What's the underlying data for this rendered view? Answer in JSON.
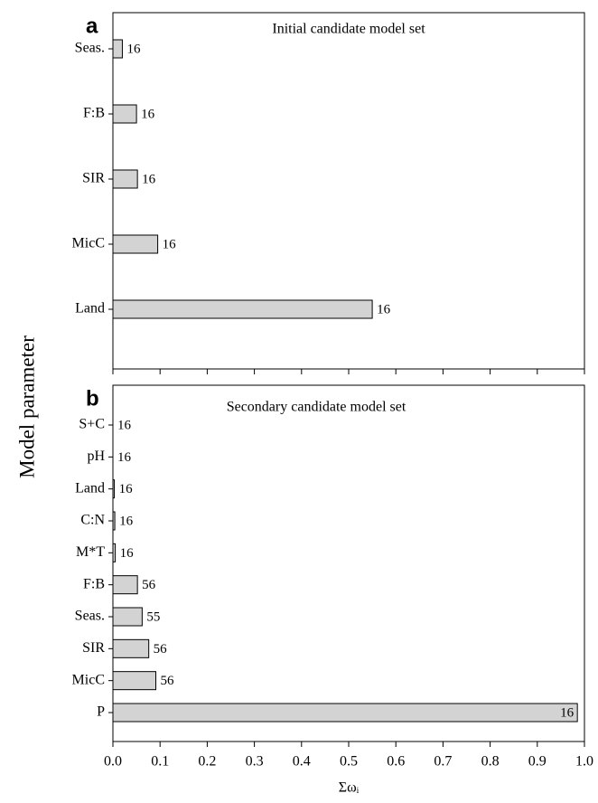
{
  "ylabel": "Model parameter",
  "chart_data": [
    {
      "type": "bar",
      "orientation": "horizontal",
      "panel_label": "a",
      "title": "Initial candidate model set",
      "categories": [
        "Seas.",
        "F:B",
        "SIR",
        "MicC",
        "Land"
      ],
      "values": [
        0.02,
        0.05,
        0.052,
        0.095,
        0.55
      ],
      "bar_labels": [
        16,
        16,
        16,
        16,
        16
      ],
      "color": "#d3d3d3",
      "xlim": [
        0,
        1
      ],
      "xticks": [
        0,
        0.1,
        0.2,
        0.3,
        0.4,
        0.5,
        0.6,
        0.7,
        0.8,
        0.9,
        1
      ],
      "show_tick_labels": false
    },
    {
      "type": "bar",
      "orientation": "horizontal",
      "panel_label": "b",
      "title": "Secondary candidate model set",
      "categories": [
        "S+C",
        "pH",
        "Land",
        "C:N",
        "M*T",
        "F:B",
        "Seas.",
        "SIR",
        "MicC",
        "P"
      ],
      "values": [
        0,
        0,
        0.003,
        0.004,
        0.005,
        0.052,
        0.062,
        0.076,
        0.091,
        0.985
      ],
      "bar_labels": [
        16,
        16,
        16,
        16,
        16,
        56,
        55,
        56,
        56,
        16
      ],
      "color": "#d3d3d3",
      "xlim": [
        0,
        1
      ],
      "xticks": [
        {
          "value": 0,
          "label": "0.0"
        },
        0.1,
        0.2,
        0.3,
        0.4,
        0.5,
        0.6,
        0.7,
        0.8,
        0.9,
        {
          "value": 1,
          "label": "1.0"
        }
      ],
      "show_tick_labels": true,
      "xlabel": "Σωᵢ"
    }
  ]
}
